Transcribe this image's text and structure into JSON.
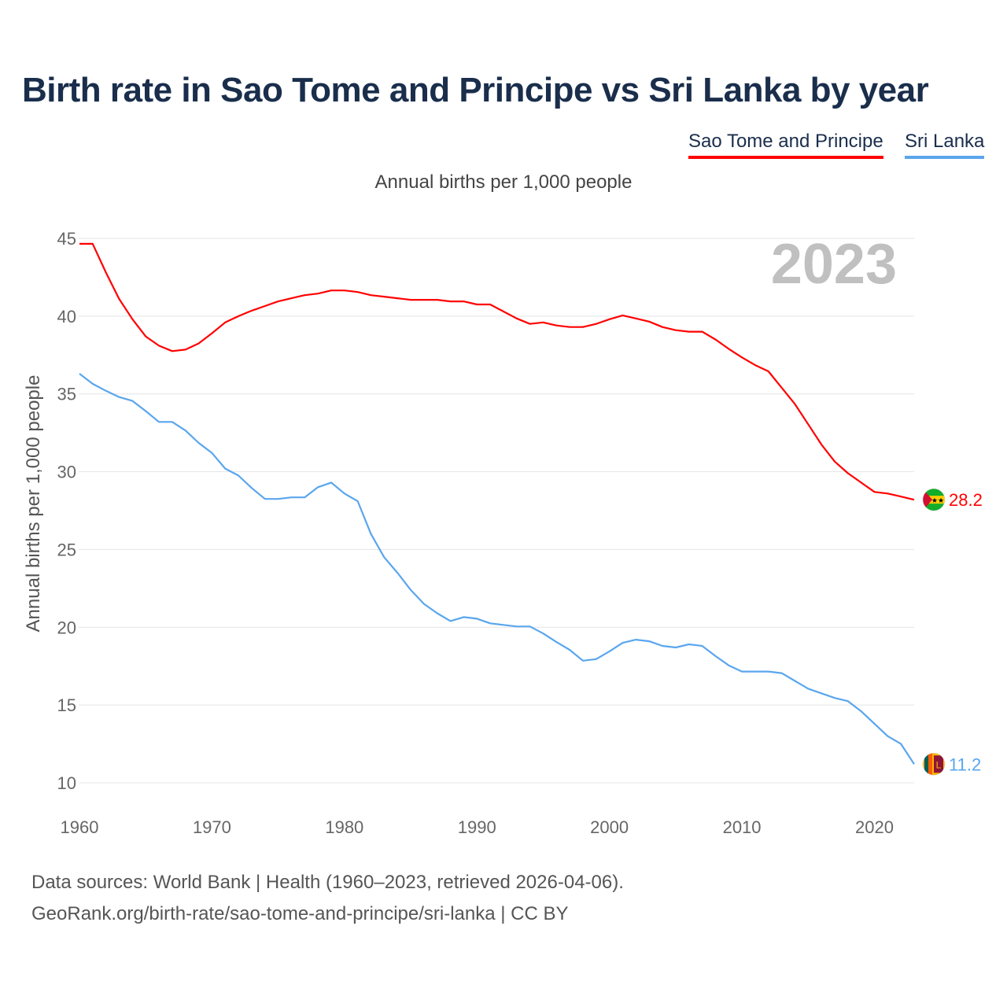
{
  "title": "Birth rate in Sao Tome and Principe vs Sri Lanka by year",
  "legend": [
    {
      "label": "Sao Tome and Principe",
      "color": "#ff0000"
    },
    {
      "label": "Sri Lanka",
      "color": "#5aa6ee"
    }
  ],
  "subtitle": "Annual births per 1,000 people",
  "year_watermark": "2023",
  "source_line1": "Data sources: World Bank | Health (1960–2023, retrieved 2026-04-06).",
  "source_line2": "GeoRank.org/birth-rate/sao-tome-and-principe/sri-lanka | CC BY",
  "chart_data": {
    "type": "line",
    "title": "Birth rate in Sao Tome and Principe vs Sri Lanka by year",
    "xlabel": "",
    "ylabel": "Annual births per 1,000 people",
    "xlim": [
      1960,
      2023
    ],
    "ylim": [
      10,
      45
    ],
    "x_ticks": [
      "1960",
      "1970",
      "1980",
      "1990",
      "2000",
      "2010",
      "2020"
    ],
    "y_ticks": [
      "10",
      "15",
      "20",
      "25",
      "30",
      "35",
      "40",
      "45"
    ],
    "grid": true,
    "legend_position": "top-right",
    "x": [
      1960,
      1961,
      1962,
      1963,
      1964,
      1965,
      1966,
      1967,
      1968,
      1969,
      1970,
      1971,
      1972,
      1973,
      1974,
      1975,
      1976,
      1977,
      1978,
      1979,
      1980,
      1981,
      1982,
      1983,
      1984,
      1985,
      1986,
      1987,
      1988,
      1989,
      1990,
      1991,
      1992,
      1993,
      1994,
      1995,
      1996,
      1997,
      1998,
      1999,
      2000,
      2001,
      2002,
      2003,
      2004,
      2005,
      2006,
      2007,
      2008,
      2009,
      2010,
      2011,
      2012,
      2013,
      2014,
      2015,
      2016,
      2017,
      2018,
      2019,
      2020,
      2021,
      2022,
      2023
    ],
    "series": [
      {
        "name": "Sao Tome and Principe",
        "color": "#ff0000",
        "end_label": "28.2",
        "values": [
          44.65,
          44.65,
          42.8,
          41.1,
          39.8,
          38.7,
          38.1,
          37.75,
          37.85,
          38.25,
          38.9,
          39.6,
          40.0,
          40.35,
          40.65,
          40.95,
          41.15,
          41.35,
          41.45,
          41.65,
          41.65,
          41.55,
          41.35,
          41.25,
          41.15,
          41.05,
          41.05,
          41.05,
          40.95,
          40.95,
          40.75,
          40.75,
          40.3,
          39.85,
          39.5,
          39.6,
          39.4,
          39.3,
          39.3,
          39.5,
          39.8,
          40.05,
          39.85,
          39.65,
          39.3,
          39.1,
          39.0,
          39.0,
          38.5,
          37.9,
          37.35,
          36.85,
          36.45,
          35.4,
          34.35,
          33.05,
          31.75,
          30.65,
          29.9,
          29.3,
          28.7,
          28.6,
          28.4,
          28.2
        ]
      },
      {
        "name": "Sri Lanka",
        "color": "#5aa6ee",
        "end_label": "11.2",
        "values": [
          36.3,
          35.65,
          35.2,
          34.8,
          34.55,
          33.9,
          33.2,
          33.2,
          32.65,
          31.85,
          31.2,
          30.2,
          29.75,
          28.95,
          28.25,
          28.25,
          28.35,
          28.35,
          29.0,
          29.3,
          28.6,
          28.1,
          26.0,
          24.5,
          23.5,
          22.4,
          21.5,
          20.9,
          20.4,
          20.65,
          20.55,
          20.25,
          20.15,
          20.05,
          20.05,
          19.6,
          19.05,
          18.55,
          17.85,
          17.95,
          18.45,
          19.0,
          19.2,
          19.1,
          18.8,
          18.7,
          18.9,
          18.8,
          18.15,
          17.55,
          17.15,
          17.15,
          17.15,
          17.05,
          16.55,
          16.05,
          15.75,
          15.45,
          15.25,
          14.6,
          13.8,
          13.0,
          12.5,
          11.2
        ]
      }
    ]
  }
}
